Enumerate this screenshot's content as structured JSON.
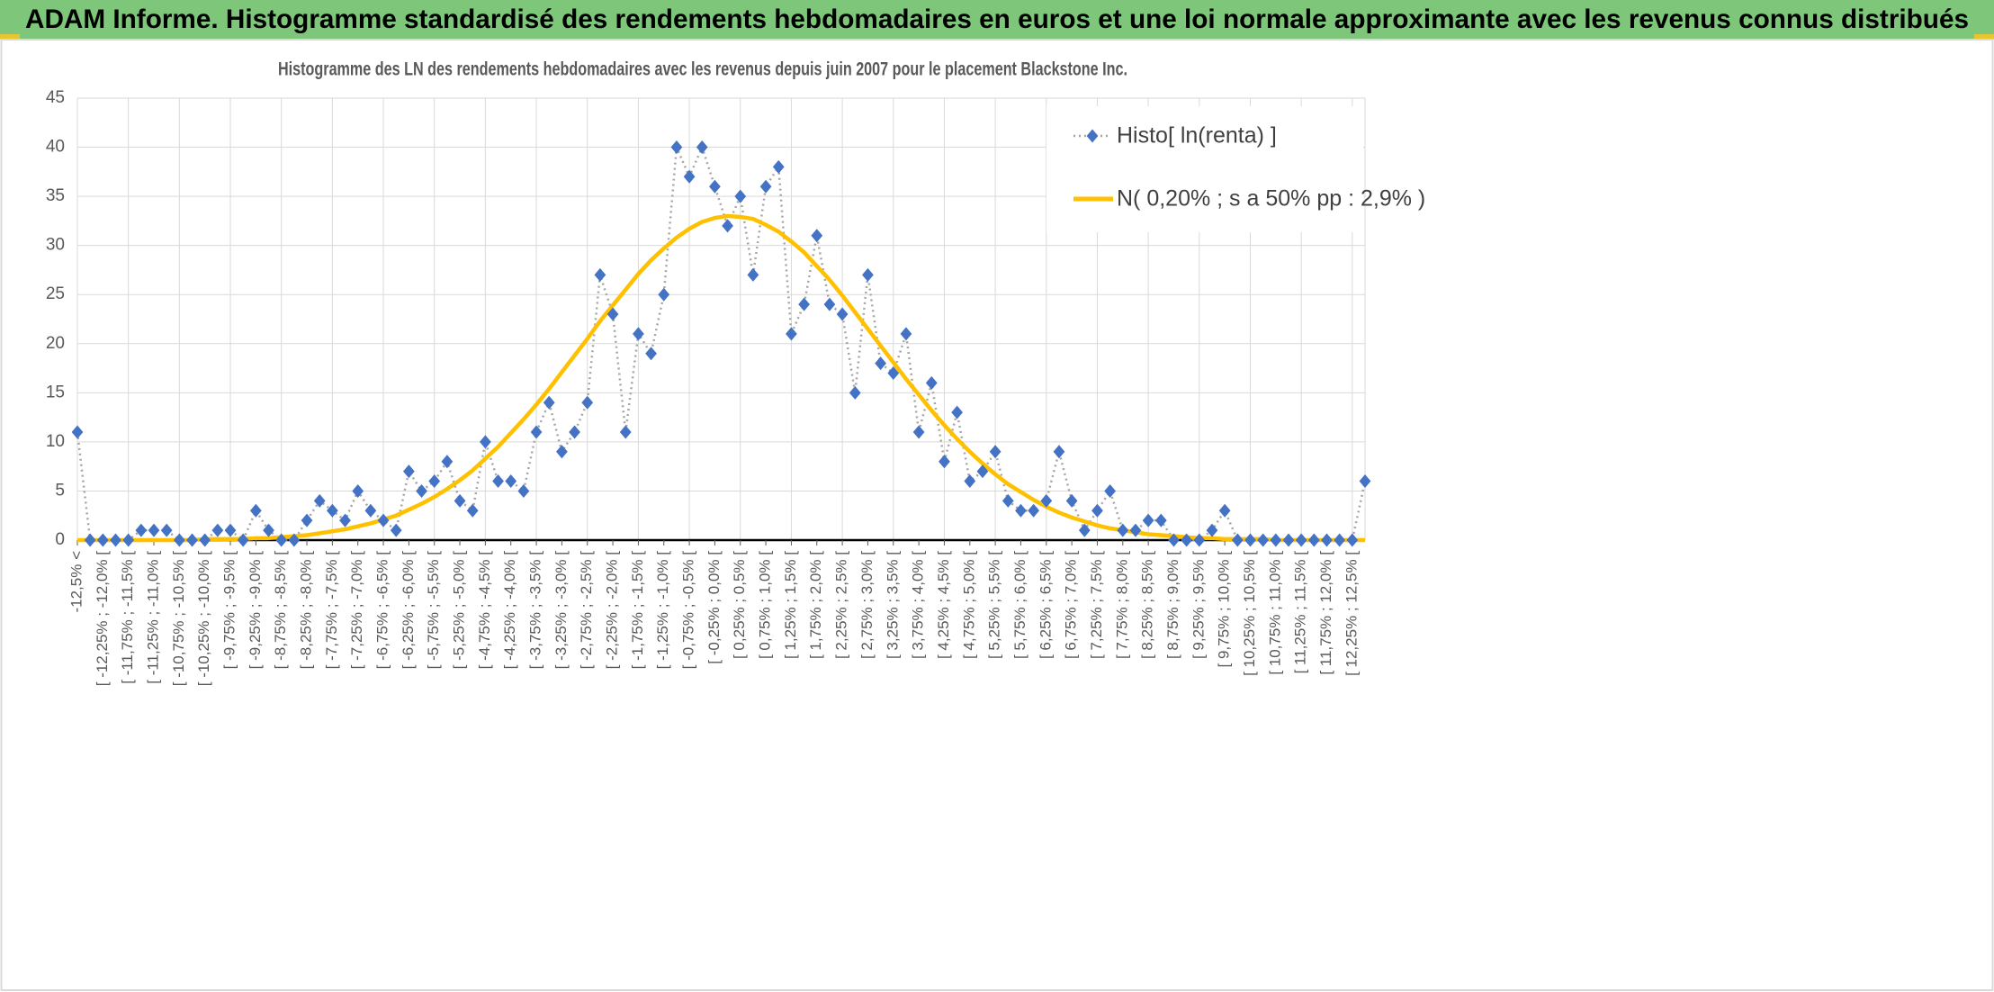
{
  "header": {
    "title": "ADAM Informe. Histogramme standardisé des rendements hebdomadaires en euros et une loi normale approximante avec les revenus connus distribués"
  },
  "chart_data": {
    "type": "line",
    "title": "Histogramme des LN des rendements hebdomadaires avec les revenus depuis juin 2007 pour le placement Blackstone Inc.",
    "categories": [
      "-12,5% <",
      null,
      "[ -12,25% ; -12,0% [",
      null,
      "[ -11,75% ; -11,5% [",
      null,
      "[ -11,25% ; -11,0% [",
      null,
      "[ -10,75% ; -10,5% [",
      null,
      "[ -10,25% ; -10,0% [",
      null,
      "[ -9,75% ; -9,5% [",
      null,
      "[ -9,25% ; -9,0% [",
      null,
      "[ -8,75% ; -8,5% [",
      null,
      "[ -8,25% ; -8,0% [",
      null,
      "[ -7,75% ; -7,5% [",
      null,
      "[ -7,25% ; -7,0% [",
      null,
      "[ -6,75% ; -6,5% [",
      null,
      "[ -6,25% ; -6,0% [",
      null,
      "[ -5,75% ; -5,5% [",
      null,
      "[ -5,25% ; -5,0% [",
      null,
      "[ -4,75% ; -4,5% [",
      null,
      "[ -4,25% ; -4,0% [",
      null,
      "[ -3,75% ; -3,5% [",
      null,
      "[ -3,25% ; -3,0% [",
      null,
      "[ -2,75% ; -2,5% [",
      null,
      "[ -2,25% ; -2,0% [",
      null,
      "[ -1,75% ; -1,5% [",
      null,
      "[ -1,25% ; -1,0% [",
      null,
      "[ -0,75% ; -0,5% [",
      null,
      "[ -0,25% ; 0,0% [",
      null,
      "[ 0,25% ; 0,5% [",
      null,
      "[ 0,75% ; 1,0% [",
      null,
      "[ 1,25% ; 1,5% [",
      null,
      "[ 1,75% ; 2,0% [",
      null,
      "[ 2,25% ; 2,5% [",
      null,
      "[ 2,75% ; 3,0% [",
      null,
      "[ 3,25% ; 3,5% [",
      null,
      "[ 3,75% ; 4,0% [",
      null,
      "[ 4,25% ; 4,5% [",
      null,
      "[ 4,75% ; 5,0% [",
      null,
      "[ 5,25% ; 5,5% [",
      null,
      "[ 5,75% ; 6,0% [",
      null,
      "[ 6,25% ; 6,5% [",
      null,
      "[ 6,75% ; 7,0% [",
      null,
      "[ 7,25% ; 7,5% [",
      null,
      "[ 7,75% ; 8,0% [",
      null,
      "[ 8,25% ; 8,5% [",
      null,
      "[ 8,75% ; 9,0% [",
      null,
      "[ 9,25% ; 9,5% [",
      null,
      "[ 9,75% ; 10,0% [",
      null,
      "[ 10,25% ; 10,5% [",
      null,
      "[ 10,75% ; 11,0% [",
      null,
      "[ 11,25% ; 11,5% [",
      null,
      "[ 11,75% ; 12,0% [",
      null,
      "[ 12,25% ; 12,5% [",
      null
    ],
    "series": [
      {
        "name": "Histo[ ln(renta) ]",
        "color": "#4472c4",
        "line_color": "#a5a5a5",
        "marker": "diamond",
        "values": [
          11,
          0,
          0,
          0,
          0,
          1,
          1,
          1,
          0,
          0,
          0,
          1,
          1,
          0,
          3,
          1,
          0,
          0,
          2,
          4,
          3,
          2,
          5,
          3,
          2,
          1,
          7,
          5,
          6,
          8,
          4,
          3,
          10,
          6,
          6,
          5,
          11,
          14,
          9,
          11,
          14,
          27,
          23,
          11,
          21,
          19,
          25,
          40,
          37,
          40,
          36,
          32,
          35,
          27,
          36,
          38,
          21,
          24,
          31,
          24,
          23,
          15,
          27,
          18,
          17,
          21,
          11,
          16,
          8,
          13,
          6,
          7,
          9,
          4,
          3,
          3,
          4,
          9,
          4,
          1,
          3,
          5,
          1,
          1,
          2,
          2,
          0,
          0,
          0,
          1,
          3,
          0,
          0,
          0,
          0,
          0,
          0,
          0,
          0,
          0,
          0,
          6
        ]
      },
      {
        "name": "N( 0,20% ; s a 50% pp : 2,9% )",
        "color": "#ffc000",
        "values": [
          0,
          0,
          0,
          0,
          0,
          0,
          0,
          0,
          0,
          0,
          0.1,
          0.1,
          0.1,
          0.1,
          0.2,
          0.2,
          0.3,
          0.4,
          0.5,
          0.7,
          0.9,
          1.1,
          1.4,
          1.7,
          2.1,
          2.5,
          3.1,
          3.7,
          4.4,
          5.2,
          6.1,
          7.1,
          8.3,
          9.5,
          10.9,
          12.3,
          13.8,
          15.4,
          17.1,
          18.8,
          20.5,
          22.3,
          23.9,
          25.5,
          27.1,
          28.5,
          29.7,
          30.8,
          31.7,
          32.4,
          32.8,
          33.0,
          32.9,
          32.7,
          32.1,
          31.4,
          30.4,
          29.3,
          27.9,
          26.5,
          24.9,
          23.2,
          21.5,
          19.8,
          18.1,
          16.4,
          14.8,
          13.2,
          11.7,
          10.3,
          9.0,
          7.8,
          6.7,
          5.7,
          4.9,
          4.1,
          3.4,
          2.8,
          2.3,
          1.9,
          1.5,
          1.2,
          1.0,
          0.8,
          0.6,
          0.5,
          0.4,
          0.3,
          0.2,
          0.2,
          0.1,
          0.1,
          0.1,
          0.1,
          0,
          0,
          0,
          0,
          0,
          0,
          0,
          0
        ]
      }
    ],
    "ylim": [
      0,
      45
    ],
    "yticks": [
      0,
      5,
      10,
      15,
      20,
      25,
      30,
      35,
      40,
      45
    ],
    "grid": true,
    "legend": "top-right"
  }
}
